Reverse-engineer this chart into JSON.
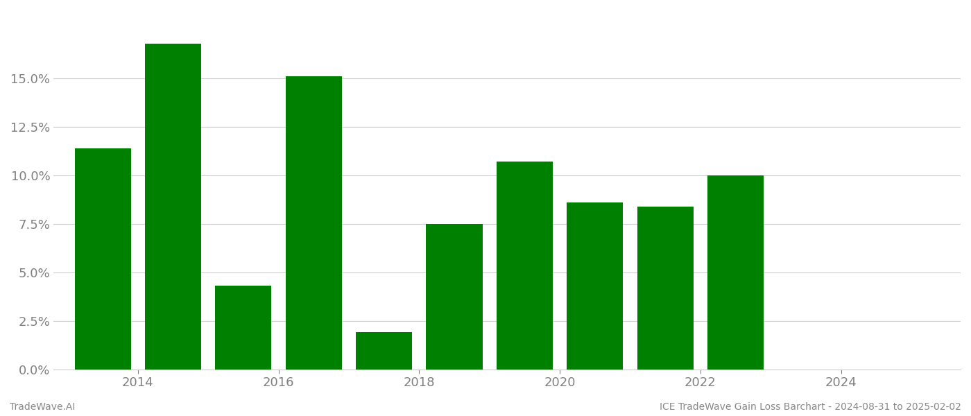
{
  "bar_data": [
    {
      "x": 2013,
      "value": 0.114
    },
    {
      "x": 2014,
      "value": 0.168
    },
    {
      "x": 2015,
      "value": 0.043
    },
    {
      "x": 2016,
      "value": 0.151
    },
    {
      "x": 2017,
      "value": 0.019
    },
    {
      "x": 2018,
      "value": 0.075
    },
    {
      "x": 2019,
      "value": 0.107
    },
    {
      "x": 2020,
      "value": 0.086
    },
    {
      "x": 2021,
      "value": 0.084
    },
    {
      "x": 2022,
      "value": 0.1
    }
  ],
  "bar_color": "#008000",
  "background_color": "#ffffff",
  "grid_color": "#cccccc",
  "tick_color": "#808080",
  "ytick_values": [
    0.0,
    0.025,
    0.05,
    0.075,
    0.1,
    0.125,
    0.15
  ],
  "xtick_values": [
    2013.5,
    2015.5,
    2017.5,
    2019.5,
    2021.5,
    2023.5
  ],
  "xtick_labels": [
    "2014",
    "2016",
    "2018",
    "2020",
    "2022",
    "2024"
  ],
  "ylim": [
    0.0,
    0.185
  ],
  "xlim": [
    2012.3,
    2025.2
  ],
  "footer_left": "TradeWave.AI",
  "footer_right": "ICE TradeWave Gain Loss Barchart - 2024-08-31 to 2025-02-02",
  "footer_color": "#888888",
  "footer_fontsize": 10,
  "bar_width": 0.8,
  "tick_fontsize": 13,
  "figsize": [
    14.0,
    6.0
  ],
  "dpi": 100
}
